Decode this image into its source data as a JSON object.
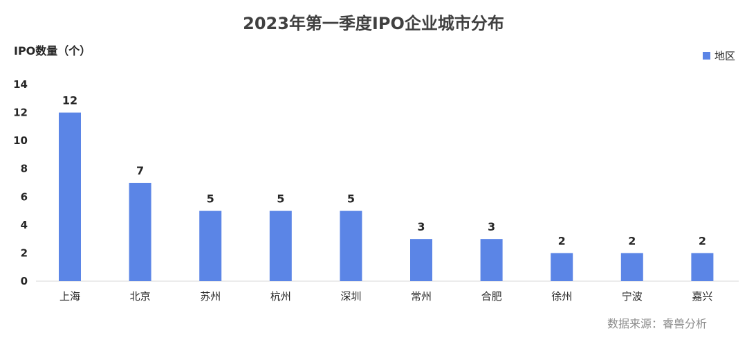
{
  "chart_data": {
    "type": "bar",
    "title": "2023年第一季度IPO企业城市分布",
    "ylabel": "IPO数量（个）",
    "xlabel": "",
    "categories": [
      "上海",
      "北京",
      "苏州",
      "杭州",
      "深圳",
      "常州",
      "合肥",
      "徐州",
      "宁波",
      "嘉兴"
    ],
    "series": [
      {
        "name": "地区",
        "values": [
          12,
          7,
          5,
          5,
          5,
          3,
          3,
          2,
          2,
          2
        ],
        "color": "#5b85e6"
      }
    ],
    "ylim": [
      0,
      14
    ],
    "yticks": [
      0,
      2,
      4,
      6,
      8,
      10,
      12,
      14
    ],
    "grid": false,
    "legend_position": "top-right"
  },
  "source": "数据来源：睿兽分析"
}
